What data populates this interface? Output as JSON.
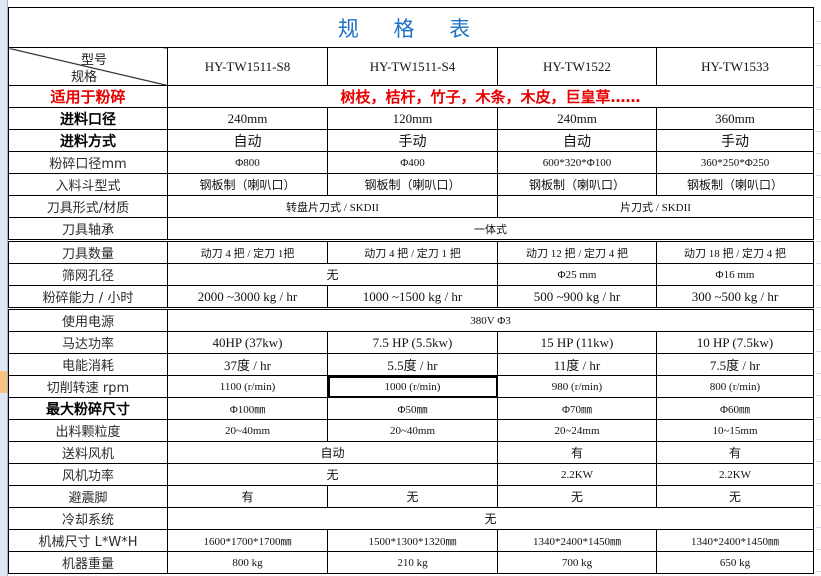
{
  "title": "规 格 表",
  "header": {
    "model_label": "型号",
    "spec_label": "规格",
    "models": [
      "HY-TW1511-S8",
      "HY-TW1511-S4",
      "HY-TW1522",
      "HY-TW1533"
    ]
  },
  "rows": [
    {
      "label": "适用于粉碎",
      "style": "red",
      "cells": [
        {
          "text": "树枝，桔杆，竹子，木条，木皮，巨皇草……",
          "span": 4,
          "cls": "red"
        }
      ]
    },
    {
      "label": "进料口径",
      "style": "bold",
      "cells": [
        {
          "text": "240mm"
        },
        {
          "text": "120mm"
        },
        {
          "text": "240mm"
        },
        {
          "text": "360mm"
        }
      ]
    },
    {
      "label": "进料方式",
      "style": "bold",
      "cells": [
        {
          "text": "自动",
          "cls": "big"
        },
        {
          "text": "手动",
          "cls": "big"
        },
        {
          "text": "自动",
          "cls": "big"
        },
        {
          "text": "手动",
          "cls": "big"
        }
      ]
    },
    {
      "label": "粉碎口径mm",
      "cells": [
        {
          "text": "Φ800",
          "cls": "small"
        },
        {
          "text": "Φ400",
          "cls": "small"
        },
        {
          "text": "600*320*Φ100",
          "cls": "small"
        },
        {
          "text": "360*250*Φ250",
          "cls": "small"
        }
      ]
    },
    {
      "label": "入料斗型式",
      "cells": [
        {
          "text": "钢板制（喇叭口）",
          "cls": "cjk"
        },
        {
          "text": "钢板制（喇叭口）",
          "cls": "cjk"
        },
        {
          "text": "钢板制（喇叭口）",
          "cls": "cjk"
        },
        {
          "text": "钢板制（喇叭口）",
          "cls": "cjk"
        }
      ]
    },
    {
      "label": "刀具形式/材质",
      "cells": [
        {
          "text": "转盘片刀式 / SKDII",
          "span": 2,
          "cls": "small"
        },
        {
          "text": "片刀式 /  SKDII",
          "span": 2,
          "cls": "small"
        }
      ]
    },
    {
      "label": "刀具轴承",
      "cells": [
        {
          "text": "一体式",
          "span": 4,
          "cls": "small"
        }
      ]
    },
    {
      "label": "刀具数量",
      "dbl": true,
      "cells": [
        {
          "text": "动刀 4 把 / 定刀 1把",
          "cls": "small"
        },
        {
          "text": "动刀 4 把 / 定刀 1 把",
          "cls": "small"
        },
        {
          "text": "动刀 12 把 / 定刀 4 把",
          "cls": "small"
        },
        {
          "text": "动刀 18 把 / 定刀 4 把",
          "cls": "small"
        }
      ]
    },
    {
      "label": "筛网孔径",
      "cells": [
        {
          "text": "无",
          "span": 2,
          "cls": "cjk"
        },
        {
          "text": "Φ25 mm",
          "cls": "small"
        },
        {
          "text": "Φ16 mm",
          "cls": "small"
        }
      ]
    },
    {
      "label": "粉碎能力 / 小时",
      "cells": [
        {
          "text": "2000 ~3000 kg / hr"
        },
        {
          "text": "1000 ~1500 kg / hr"
        },
        {
          "text": "500 ~900 kg / hr"
        },
        {
          "text": "300 ~500 kg / hr"
        }
      ]
    },
    {
      "label": "使用电源",
      "dbl": true,
      "cells": [
        {
          "text": "380V Φ3",
          "span": 4,
          "cls": "small"
        }
      ]
    },
    {
      "label": "马达功率",
      "cells": [
        {
          "text": "40HP (37kw)"
        },
        {
          "text": "7.5 HP (5.5kw)"
        },
        {
          "text": "15 HP (11kw)"
        },
        {
          "text": "10 HP (7.5kw)"
        }
      ]
    },
    {
      "label": "电能消耗",
      "cells": [
        {
          "text": "37度 / hr"
        },
        {
          "text": "5.5度 / hr"
        },
        {
          "text": "11度 / hr"
        },
        {
          "text": "7.5度 / hr"
        }
      ]
    },
    {
      "label": "切削转速  rpm",
      "cells": [
        {
          "text": "1100 (r/min)",
          "cls": "small"
        },
        {
          "text": "1000 (r/min)",
          "cls": "small sel"
        },
        {
          "text": "980 (r/min)",
          "cls": "small"
        },
        {
          "text": "800 (r/min)",
          "cls": "small"
        }
      ]
    },
    {
      "label": "最大粉碎尺寸",
      "style": "bold",
      "cells": [
        {
          "text": "Φ100㎜",
          "cls": "small"
        },
        {
          "text": "Φ50㎜",
          "cls": "small"
        },
        {
          "text": "Φ70㎜",
          "cls": "small"
        },
        {
          "text": "Φ60㎜",
          "cls": "small"
        }
      ]
    },
    {
      "label": "出料颗粒度",
      "cells": [
        {
          "text": "20~40mm",
          "cls": "small"
        },
        {
          "text": "20~40mm",
          "cls": "small"
        },
        {
          "text": "20~24mm",
          "cls": "small"
        },
        {
          "text": "10~15mm",
          "cls": "small"
        }
      ]
    },
    {
      "label": "送料风机",
      "cells": [
        {
          "text": "自动",
          "span": 2,
          "cls": "cjk"
        },
        {
          "text": "有",
          "cls": "cjk"
        },
        {
          "text": "有",
          "cls": "cjk"
        }
      ]
    },
    {
      "label": "风机功率",
      "cells": [
        {
          "text": "无",
          "span": 2,
          "cls": "cjk"
        },
        {
          "text": "2.2KW",
          "cls": "small"
        },
        {
          "text": "2.2KW",
          "cls": "small"
        }
      ]
    },
    {
      "label": "避震脚",
      "cells": [
        {
          "text": "有",
          "cls": "cjk"
        },
        {
          "text": "无",
          "cls": "cjk"
        },
        {
          "text": "无",
          "cls": "cjk"
        },
        {
          "text": "无",
          "cls": "cjk"
        }
      ]
    },
    {
      "label": "冷却系统",
      "cells": [
        {
          "text": "无",
          "span": 4,
          "cls": "cjk"
        }
      ]
    },
    {
      "label": "机械尺寸 L*W*H",
      "cells": [
        {
          "text": "1600*1700*1700㎜",
          "cls": "small"
        },
        {
          "text": "1500*1300*1320㎜",
          "cls": "small"
        },
        {
          "text": "1340*2400*1450㎜",
          "cls": "small"
        },
        {
          "text": "1340*2400*1450㎜",
          "cls": "small"
        }
      ]
    },
    {
      "label": "机器重量",
      "cells": [
        {
          "text": "800 kg",
          "cls": "small"
        },
        {
          "text": "210 kg",
          "cls": "small"
        },
        {
          "text": "700 kg",
          "cls": "small"
        },
        {
          "text": "650 kg",
          "cls": "small"
        }
      ]
    }
  ]
}
